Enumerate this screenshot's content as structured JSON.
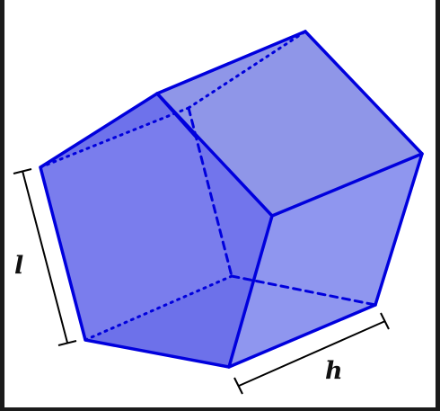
{
  "labels": {
    "edge_length": "l",
    "prism_height": "h"
  },
  "colors": {
    "edge": "#0000dd",
    "face_light": "#8f96ee",
    "face_mid": "#7a80e6",
    "face_dark": "#6a6ee8",
    "dimension": "#000000"
  }
}
